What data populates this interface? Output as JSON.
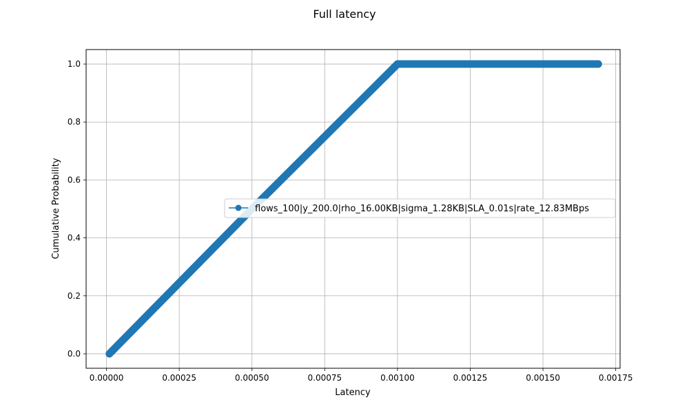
{
  "chart_data": {
    "type": "line",
    "title": "Full latency",
    "xlabel": "Latency",
    "ylabel": "Cumulative Probability",
    "xlim": [
      -7e-05,
      0.001765
    ],
    "ylim": [
      -0.05,
      1.05
    ],
    "xticks": [
      0.0,
      0.00025,
      0.0005,
      0.00075,
      0.001,
      0.00125,
      0.0015,
      0.00175
    ],
    "xtick_labels": [
      "0.00000",
      "0.00025",
      "0.00050",
      "0.00075",
      "0.00100",
      "0.00125",
      "0.00150",
      "0.00175"
    ],
    "yticks": [
      0.0,
      0.2,
      0.4,
      0.6,
      0.8,
      1.0
    ],
    "ytick_labels": [
      "0.0",
      "0.2",
      "0.4",
      "0.6",
      "0.8",
      "1.0"
    ],
    "grid": true,
    "legend_position": "center-right",
    "series": [
      {
        "name": "flows_100|y_200.0|rho_16.00KB|sigma_1.28KB|SLA_0.01s|rate_12.83MBps",
        "color": "#1f77b4",
        "marker": "circle",
        "x": [
          1e-05,
          0.0005,
          0.001,
          0.00169
        ],
        "y": [
          0.0,
          0.5,
          1.0,
          1.0
        ]
      }
    ]
  }
}
